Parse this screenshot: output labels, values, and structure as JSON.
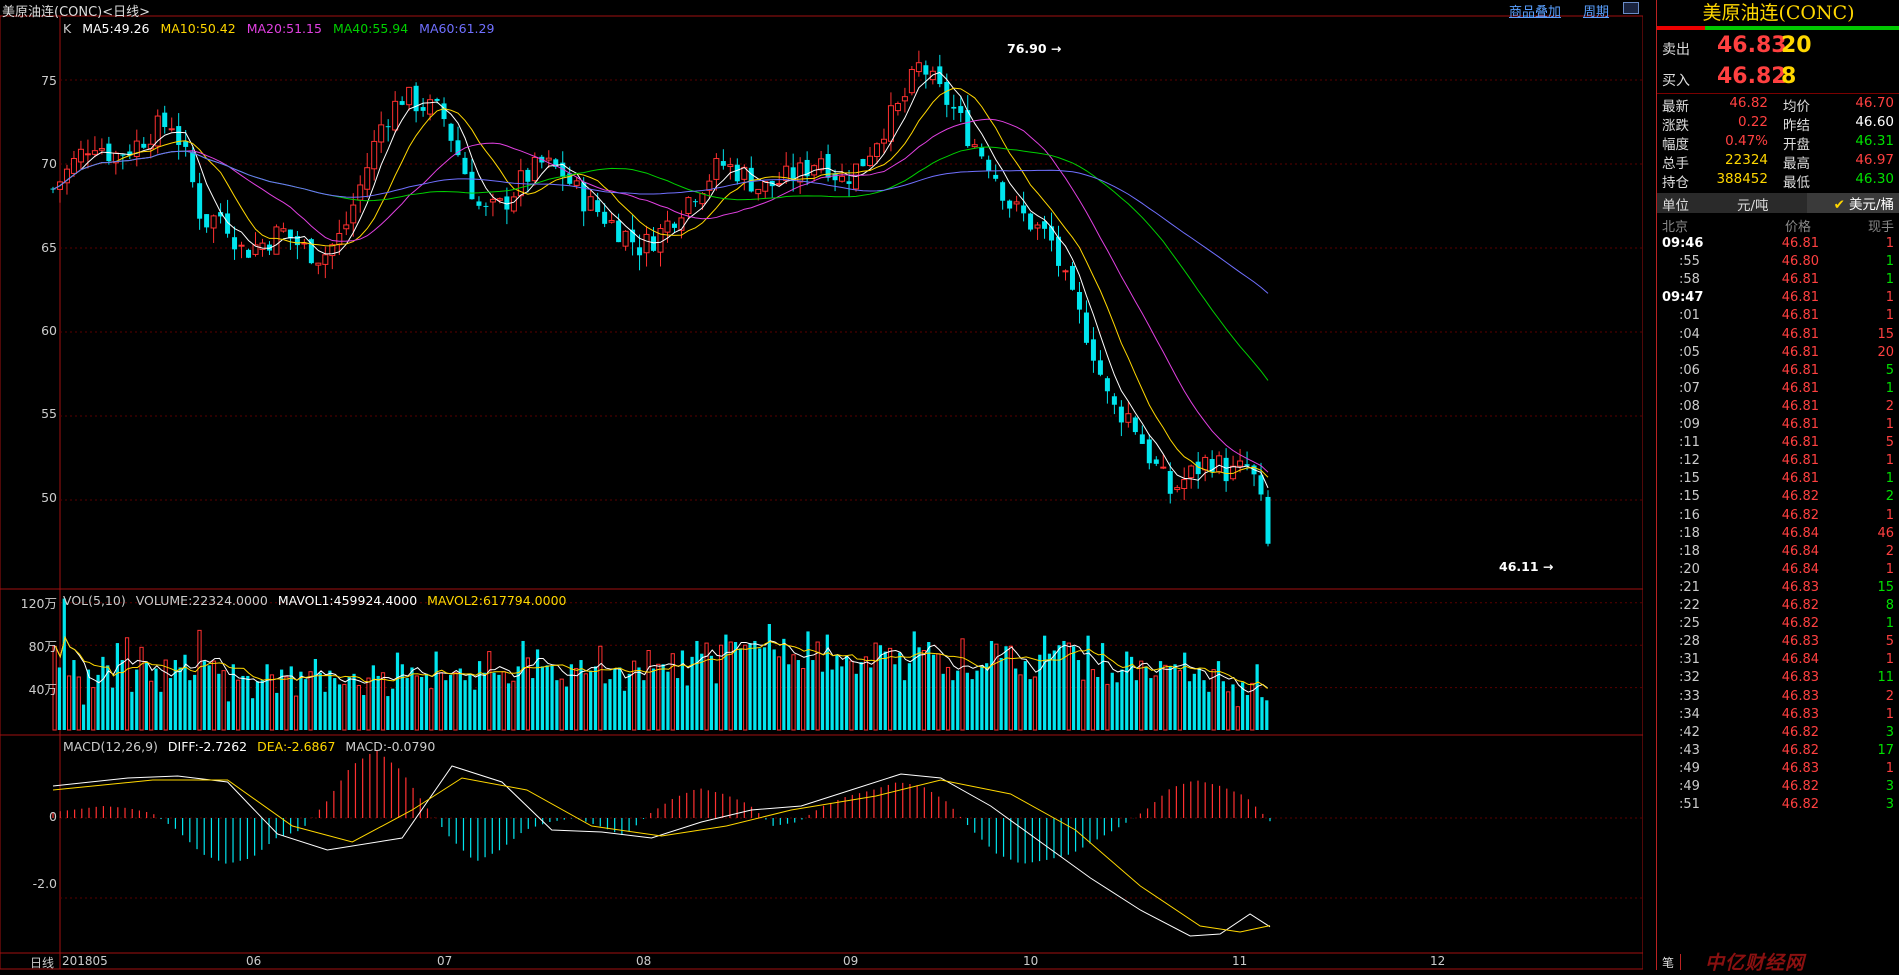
{
  "header": {
    "title": "美原油连(CONC)<日线>",
    "links": [
      "商品叠加",
      "周期"
    ]
  },
  "ma_legend": {
    "prefix": "K",
    "items": [
      {
        "text": "MA5:49.26",
        "color": "#ffffff"
      },
      {
        "text": "MA10:50.42",
        "color": "#ffd700"
      },
      {
        "text": "MA20:51.15",
        "color": "#e040e0"
      },
      {
        "text": "MA40:55.94",
        "color": "#00d000"
      },
      {
        "text": "MA60:61.29",
        "color": "#7070ff"
      }
    ]
  },
  "vol_legend": [
    {
      "text": "VOL(5,10)",
      "color": "#cccccc"
    },
    {
      "text": "VOLUME:22324.0000",
      "color": "#cccccc"
    },
    {
      "text": "MAVOL1:459924.4000",
      "color": "#ffffff"
    },
    {
      "text": "MAVOL2:617794.0000",
      "color": "#ffd700"
    }
  ],
  "macd_legend": [
    {
      "text": "MACD(12,26,9)",
      "color": "#cccccc"
    },
    {
      "text": "DIFF:-2.7262",
      "color": "#ffffff"
    },
    {
      "text": "DEA:-2.6867",
      "color": "#ffd700"
    },
    {
      "text": "MACD:-0.0790",
      "color": "#cccccc"
    }
  ],
  "price_axis": [
    "75",
    "70",
    "65",
    "60",
    "55",
    "50"
  ],
  "vol_axis": [
    "120万",
    "80万",
    "40万"
  ],
  "macd_axis": [
    "0",
    "-2.0"
  ],
  "x_labels": [
    "日线",
    "201805",
    "06",
    "07",
    "08",
    "09",
    "10",
    "11",
    "12"
  ],
  "annotations": {
    "high": "76.90",
    "low": "46.11"
  },
  "chart_data": {
    "type": "candlestick",
    "title": "美原油连(CONC)<日线>",
    "x_range": [
      "2018-05",
      "2018-12"
    ],
    "ylim_price": [
      45,
      77.5
    ],
    "ylim_volume": [
      0,
      1300000
    ],
    "ylim_macd": [
      -3.2,
      1.8
    ],
    "high": 76.9,
    "low": 46.11,
    "series": [
      {
        "name": "MA5",
        "last": 49.26
      },
      {
        "name": "MA10",
        "last": 50.42
      },
      {
        "name": "MA20",
        "last": 51.15
      },
      {
        "name": "MA40",
        "last": 55.94
      },
      {
        "name": "MA60",
        "last": 61.29
      }
    ],
    "close_path": [
      [
        0,
        68.5
      ],
      [
        4,
        70
      ],
      [
        8,
        71.5
      ],
      [
        12,
        70.5
      ],
      [
        16,
        71
      ],
      [
        20,
        72
      ],
      [
        24,
        72.5
      ],
      [
        27,
        70
      ],
      [
        30,
        66.5
      ],
      [
        34,
        67
      ],
      [
        38,
        64.8
      ],
      [
        42,
        65.3
      ],
      [
        46,
        66
      ],
      [
        50,
        65
      ],
      [
        54,
        64.5
      ],
      [
        58,
        65.8
      ],
      [
        62,
        69
      ],
      [
        66,
        72.5
      ],
      [
        70,
        74
      ],
      [
        74,
        73.5
      ],
      [
        78,
        73
      ],
      [
        82,
        70
      ],
      [
        86,
        67
      ],
      [
        90,
        67.5
      ],
      [
        94,
        69
      ],
      [
        98,
        70
      ],
      [
        102,
        69.5
      ],
      [
        106,
        68
      ],
      [
        110,
        67
      ],
      [
        114,
        66
      ],
      [
        118,
        65
      ],
      [
        122,
        66
      ],
      [
        126,
        67.5
      ],
      [
        130,
        68.8
      ],
      [
        134,
        70
      ],
      [
        138,
        69.5
      ],
      [
        142,
        68.5
      ],
      [
        146,
        69
      ],
      [
        150,
        69.5
      ],
      [
        154,
        70.5
      ],
      [
        158,
        69
      ],
      [
        162,
        70
      ],
      [
        166,
        72
      ],
      [
        170,
        73.5
      ],
      [
        174,
        76
      ],
      [
        177,
        74.5
      ],
      [
        180,
        73.5
      ],
      [
        184,
        71.5
      ],
      [
        188,
        70
      ],
      [
        192,
        67.5
      ],
      [
        196,
        66.5
      ],
      [
        200,
        65.5
      ],
      [
        204,
        62
      ],
      [
        208,
        59.5
      ],
      [
        212,
        55.5
      ],
      [
        216,
        55
      ],
      [
        220,
        52.5
      ],
      [
        224,
        50.5
      ],
      [
        228,
        51.5
      ],
      [
        232,
        52.5
      ],
      [
        236,
        51.5
      ],
      [
        240,
        52
      ],
      [
        242,
        50
      ],
      [
        244,
        46.5
      ]
    ],
    "volume": [
      79,
      59,
      124,
      51,
      66,
      50,
      24,
      57,
      40,
      52,
      69,
      61,
      40,
      82,
      66,
      87,
      36,
      57,
      78,
      64,
      46,
      58,
      36,
      66,
      49,
      66,
      59,
      71,
      47,
      52,
      94,
      65,
      61,
      65,
      53,
      56,
      27,
      62,
      47,
      51,
      51,
      30,
      46,
      47,
      62,
      52,
      35,
      57,
      50,
      60,
      32,
      55,
      48,
      55,
      67,
      54,
      36,
      56,
      49,
      43,
      43,
      50,
      53,
      42,
      33,
      49,
      61,
      51,
      54,
      32,
      39,
      73,
      62,
      49,
      59,
      51,
      50,
      53,
      39,
      74,
      54,
      47,
      52,
      54,
      58,
      47,
      53,
      38,
      65,
      54,
      74,
      54,
      52,
      55,
      44,
      46,
      60,
      84,
      68,
      49,
      76,
      60,
      61,
      61,
      47,
      48,
      41,
      62,
      58,
      66,
      53,
      56,
      60,
      79,
      44,
      48,
      58,
      59,
      37,
      53,
      65,
      59,
      47,
      75,
      58,
      62,
      62,
      55,
      72,
      49,
      75,
      42,
      69,
      84,
      72,
      82,
      70,
      44,
      80,
      90,
      83,
      83,
      77,
      80,
      82,
      84,
      77,
      78,
      100,
      76,
      69,
      86,
      62,
      71,
      66,
      58,
      93,
      66,
      83,
      55,
      90,
      57,
      71,
      60,
      70,
      65,
      53,
      64,
      69,
      59,
      82,
      80,
      74,
      77,
      62,
      73,
      47,
      63,
      93,
      78,
      75,
      83,
      71,
      72,
      53,
      59,
      47,
      56,
      86,
      54,
      48,
      56,
      61,
      63,
      84,
      81,
      68,
      79,
      79,
      58,
      52,
      65,
      48,
      50,
      71,
      89,
      72,
      75,
      80,
      84,
      82,
      79,
      66,
      47,
      89,
      57,
      50,
      82,
      43,
      54,
      45,
      57,
      74,
      69,
      47,
      65,
      60,
      49,
      51,
      65,
      61,
      60,
      62,
      56,
      73,
      46,
      53,
      58,
      47,
      36,
      57,
      65,
      46,
      36,
      43,
      22,
      45,
      33,
      44,
      62,
      31,
      28
    ],
    "macd_hist": [
      0.15,
      0.22,
      0.3,
      0.25,
      0.12,
      -0.3,
      -0.9,
      -1.15,
      -1.0,
      -0.5,
      -0.3,
      0.4,
      1.3,
      1.7,
      1.2,
      0.3,
      -0.5,
      -1.1,
      -0.8,
      -0.3,
      -0.1,
      0.0,
      -0.2,
      -0.45,
      0.1,
      0.5,
      0.75,
      0.6,
      0.35,
      -0.2,
      -0.1,
      0.3,
      0.55,
      0.7,
      0.9,
      0.8,
      0.4,
      -0.3,
      -0.9,
      -1.15,
      -1.05,
      -0.9,
      -0.55,
      -0.2,
      0.2,
      0.75,
      0.95,
      0.8,
      0.55,
      -0.08
    ]
  },
  "panel": {
    "title": "美原油连(CONC)",
    "sell": {
      "label": "卖出",
      "price": "46.83",
      "vol": "20"
    },
    "buy": {
      "label": "买入",
      "price": "46.82",
      "vol": "8"
    },
    "quotes": [
      {
        "l1": "最新",
        "v1": "46.82",
        "c1": "#ff4040",
        "l2": "均价",
        "v2": "46.70",
        "c2": "#ff4040"
      },
      {
        "l1": "涨跌",
        "v1": "0.22",
        "c1": "#ff4040",
        "l2": "昨结",
        "v2": "46.60",
        "c2": "#ffffff"
      },
      {
        "l1": "幅度",
        "v1": "0.47%",
        "c1": "#ff4040",
        "l2": "开盘",
        "v2": "46.31",
        "c2": "#00e000"
      },
      {
        "l1": "总手",
        "v1": "22324",
        "c1": "#ffd700",
        "l2": "最高",
        "v2": "46.97",
        "c2": "#ff4040"
      },
      {
        "l1": "持仓",
        "v1": "388452",
        "c1": "#ffd700",
        "l2": "最低",
        "v2": "46.30",
        "c2": "#00e000"
      }
    ],
    "unit": {
      "label": "单位",
      "value": "元/吨",
      "alt": "美元/桶"
    },
    "ticks_header": {
      "time": "北京",
      "price": "价格",
      "qty": "现手"
    },
    "ticks": [
      {
        "t": "09:46",
        "p": "46.81",
        "q": "1",
        "qc": "#ff4040"
      },
      {
        "t": ":55",
        "p": "46.80",
        "q": "1",
        "qc": "#00e000"
      },
      {
        "t": ":58",
        "p": "46.81",
        "q": "1",
        "qc": "#00e000"
      },
      {
        "t": "09:47",
        "p": "46.81",
        "q": "1",
        "qc": "#ff4040"
      },
      {
        "t": ":01",
        "p": "46.81",
        "q": "1",
        "qc": "#ff4040"
      },
      {
        "t": ":04",
        "p": "46.81",
        "q": "15",
        "qc": "#ff4040"
      },
      {
        "t": ":05",
        "p": "46.81",
        "q": "20",
        "qc": "#ff4040"
      },
      {
        "t": ":06",
        "p": "46.81",
        "q": "5",
        "qc": "#00e000"
      },
      {
        "t": ":07",
        "p": "46.81",
        "q": "1",
        "qc": "#00e000"
      },
      {
        "t": ":08",
        "p": "46.81",
        "q": "2",
        "qc": "#ff4040"
      },
      {
        "t": ":09",
        "p": "46.81",
        "q": "1",
        "qc": "#ff4040"
      },
      {
        "t": ":11",
        "p": "46.81",
        "q": "5",
        "qc": "#ff4040"
      },
      {
        "t": ":12",
        "p": "46.81",
        "q": "1",
        "qc": "#ff4040"
      },
      {
        "t": ":15",
        "p": "46.81",
        "q": "1",
        "qc": "#00e000"
      },
      {
        "t": ":15",
        "p": "46.82",
        "q": "2",
        "qc": "#00e000"
      },
      {
        "t": ":16",
        "p": "46.82",
        "q": "1",
        "qc": "#ff4040"
      },
      {
        "t": ":18",
        "p": "46.84",
        "q": "46",
        "qc": "#ff4040"
      },
      {
        "t": ":18",
        "p": "46.84",
        "q": "2",
        "qc": "#ff4040"
      },
      {
        "t": ":20",
        "p": "46.84",
        "q": "1",
        "qc": "#ff4040"
      },
      {
        "t": ":21",
        "p": "46.83",
        "q": "15",
        "qc": "#00e000"
      },
      {
        "t": ":22",
        "p": "46.82",
        "q": "8",
        "qc": "#00e000"
      },
      {
        "t": ":25",
        "p": "46.82",
        "q": "1",
        "qc": "#00e000"
      },
      {
        "t": ":28",
        "p": "46.83",
        "q": "5",
        "qc": "#ff4040"
      },
      {
        "t": ":31",
        "p": "46.84",
        "q": "1",
        "qc": "#ff4040"
      },
      {
        "t": ":32",
        "p": "46.83",
        "q": "11",
        "qc": "#00e000"
      },
      {
        "t": ":33",
        "p": "46.83",
        "q": "2",
        "qc": "#ff4040"
      },
      {
        "t": ":34",
        "p": "46.83",
        "q": "1",
        "qc": "#ff4040"
      },
      {
        "t": ":42",
        "p": "46.82",
        "q": "3",
        "qc": "#00e000"
      },
      {
        "t": ":43",
        "p": "46.82",
        "q": "17",
        "qc": "#00e000"
      },
      {
        "t": ":49",
        "p": "46.83",
        "q": "1",
        "qc": "#ff4040"
      },
      {
        "t": ":49",
        "p": "46.82",
        "q": "3",
        "qc": "#00e000"
      },
      {
        "t": ":51",
        "p": "46.82",
        "q": "3",
        "qc": "#00e000"
      }
    ],
    "footer_tab": "笔"
  },
  "watermark": "中亿财经网"
}
